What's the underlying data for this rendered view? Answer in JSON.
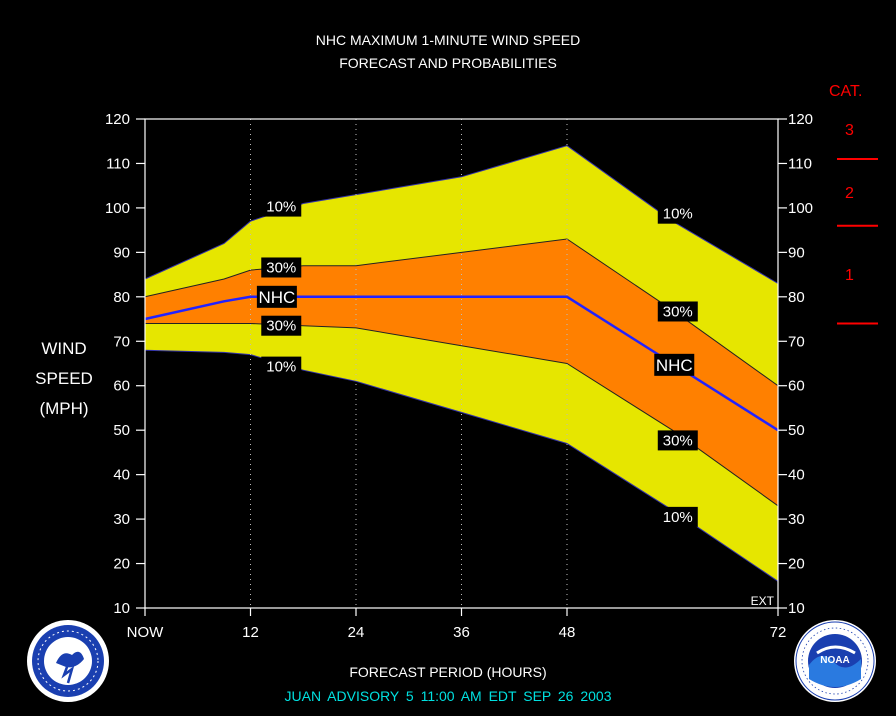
{
  "header": {
    "title_line1": "NHC MAXIMUM 1-MINUTE WIND SPEED",
    "title_line2": "FORECAST AND PROBABILITIES"
  },
  "y_label": {
    "line1": "WIND",
    "line2": "SPEED",
    "line3": "(MPH)"
  },
  "categories_panel": {
    "heading": "CAT.",
    "labels": [
      "3",
      "2",
      "1"
    ],
    "color": "#ff0000"
  },
  "footer": {
    "x_title": "FORECAST PERIOD (HOURS)",
    "advisory": "JUAN   ADVISORY  5  11:00 AM  EDT  SEP  26  2003"
  },
  "logos": {
    "left": "nws-logo",
    "right": "noaa-logo"
  },
  "chart_data": {
    "type": "area",
    "title": "NHC MAXIMUM 1-MINUTE WIND SPEED",
    "subtitle": "FORECAST AND PROBABILITIES",
    "xlabel": "FORECAST PERIOD (HOURS)",
    "ylabel": "WIND SPEED (MPH)",
    "ylim": [
      10,
      120
    ],
    "xlim": [
      0,
      72
    ],
    "x_ticks": [
      0,
      12,
      24,
      36,
      48,
      72
    ],
    "x_tick_labels": [
      "NOW",
      "12",
      "24",
      "36",
      "48",
      "72"
    ],
    "y_ticks": [
      10,
      20,
      30,
      40,
      50,
      60,
      70,
      80,
      90,
      100,
      110,
      120
    ],
    "grid": "vertical dotted at 12, 24, 36, 48",
    "ext_label": "EXT",
    "x": [
      0,
      9,
      12,
      18,
      24,
      36,
      48,
      60,
      72
    ],
    "series": [
      {
        "name": "10%",
        "values": [
          84,
          92,
          97,
          101,
          103,
          107,
          114,
          97,
          83
        ]
      },
      {
        "name": "30%",
        "values": [
          80,
          84,
          86,
          87,
          87,
          90,
          93,
          77,
          60
        ]
      },
      {
        "name": "NHC",
        "values": [
          75,
          79,
          80,
          80,
          80,
          80,
          80,
          65,
          50
        ]
      },
      {
        "name": "30%",
        "values": [
          74,
          74,
          74,
          73.5,
          73,
          69,
          65,
          50,
          33
        ]
      },
      {
        "name": "10%",
        "values": [
          68,
          67.5,
          67,
          63.5,
          61,
          54,
          47,
          32,
          16
        ]
      }
    ],
    "curve_labels": [
      {
        "text": "10%",
        "x": 15.5,
        "y": 100.3
      },
      {
        "text": "30%",
        "x": 15.5,
        "y": 86.6
      },
      {
        "text": "NHC",
        "x": 15.0,
        "y": 80.0
      },
      {
        "text": "30%",
        "x": 15.5,
        "y": 73.5
      },
      {
        "text": "10%",
        "x": 15.5,
        "y": 64.3
      },
      {
        "text": "10%",
        "x": 60.6,
        "y": 98.7
      },
      {
        "text": "30%",
        "x": 60.6,
        "y": 76.7
      },
      {
        "text": "NHC",
        "x": 60.2,
        "y": 64.7
      },
      {
        "text": "30%",
        "x": 60.6,
        "y": 47.7
      },
      {
        "text": "10%",
        "x": 60.6,
        "y": 30.5
      }
    ],
    "colors": {
      "outer_band": "#e6e600",
      "inner_band": "#ff8000",
      "forecast_line": "#2222ff",
      "background": "#000000"
    },
    "category_thresholds": [
      111,
      96,
      74
    ]
  }
}
